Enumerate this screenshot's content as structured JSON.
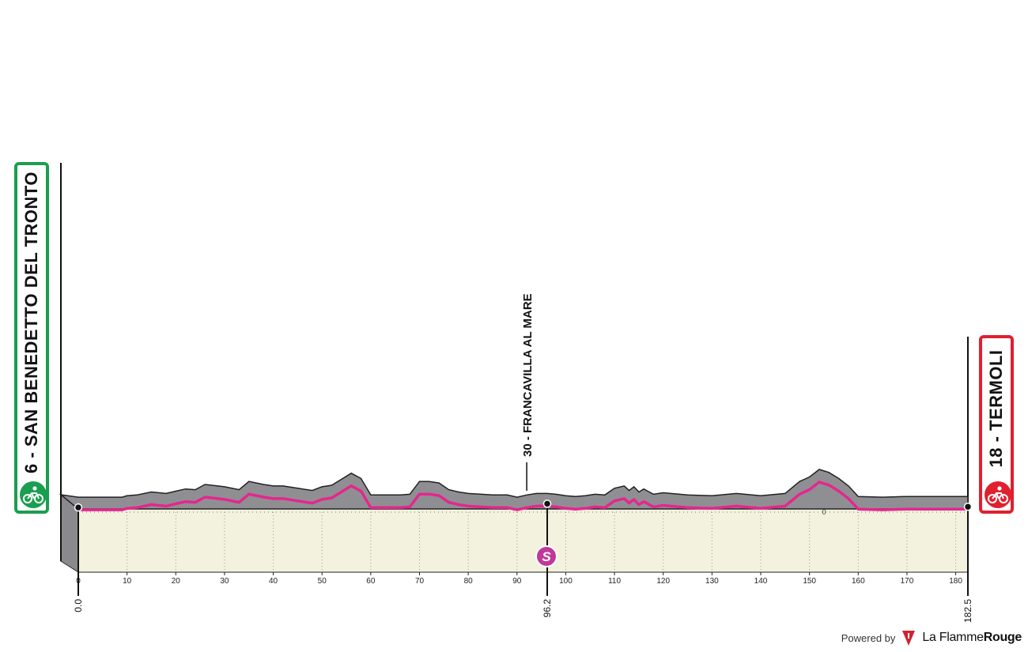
{
  "chart_data": {
    "type": "area",
    "title": "",
    "xlabel": "",
    "ylabel": "",
    "x_unit": "km",
    "xlim": [
      0,
      182.5
    ],
    "x_ticks": [
      0,
      10,
      20,
      30,
      40,
      50,
      60,
      70,
      80,
      90,
      100,
      110,
      120,
      130,
      140,
      150,
      160,
      170,
      180
    ],
    "elevation_reference_label": "0",
    "route": {
      "x": [
        0,
        5,
        9,
        10,
        12,
        15,
        18,
        20,
        22,
        24,
        26,
        30,
        33,
        35,
        38,
        40,
        42,
        45,
        48,
        50,
        52,
        54,
        56,
        58,
        60,
        62,
        64,
        66,
        68,
        70,
        72,
        74,
        76,
        78,
        80,
        85,
        88,
        90,
        92,
        94,
        96.2,
        98,
        100,
        102,
        104,
        106,
        108,
        110,
        112,
        113,
        114,
        115,
        116,
        118,
        120,
        125,
        130,
        135,
        140,
        145,
        148,
        150,
        152,
        154,
        156,
        158,
        160,
        165,
        170,
        175,
        180,
        182.5
      ],
      "y": [
        3,
        3,
        3,
        5,
        6,
        10,
        8,
        11,
        14,
        13,
        20,
        17,
        13,
        24,
        20,
        18,
        18,
        15,
        12,
        17,
        19,
        27,
        35,
        28,
        6,
        6,
        6,
        6,
        7,
        24,
        24,
        22,
        13,
        10,
        8,
        6,
        6,
        3,
        6,
        8,
        8,
        7,
        5,
        4,
        5,
        7,
        6,
        15,
        18,
        12,
        17,
        10,
        14,
        7,
        9,
        6,
        5,
        8,
        5,
        8,
        24,
        30,
        40,
        36,
        28,
        18,
        4,
        3,
        4,
        4,
        4,
        4
      ]
    },
    "checkpoints": [
      {
        "km": "0.0"
      },
      {
        "km": "96.2",
        "symbol": "S"
      },
      {
        "km": "182.5"
      }
    ],
    "annotations": [
      {
        "km": 92,
        "label": "30 - FRANCAVILLA AL MARE"
      }
    ],
    "colors": {
      "route": "#e5268e",
      "relief": "#8f8f93",
      "ground": "#f2f2de",
      "sprint_badge": "#c0399a"
    }
  },
  "start": {
    "label": "6 - SAN BENEDETTO DEL TRONTO",
    "color": "#1a9e4f",
    "icon": "cyclist-icon"
  },
  "finish": {
    "label": "18 - TERMOLI",
    "color": "#e0202e",
    "icon": "cyclist-icon"
  },
  "footer": {
    "powered_by": "Powered by",
    "brand_light": "La Flamme",
    "brand_bold": "Rouge"
  }
}
